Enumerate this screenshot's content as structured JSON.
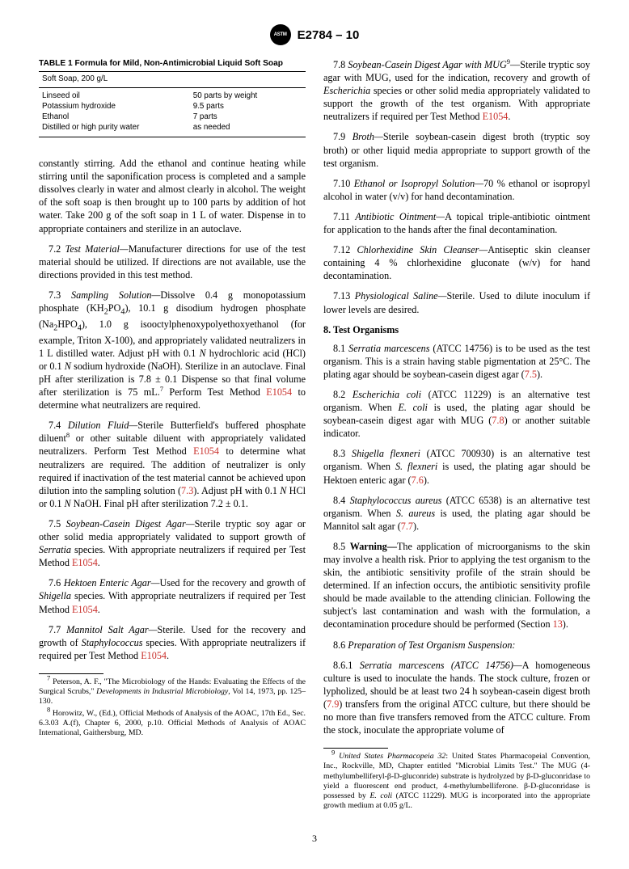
{
  "header": {
    "doc_id": "E2784 – 10"
  },
  "table": {
    "title": "TABLE 1 Formula for Mild, Non-Antimicrobial Liquid Soft Soap",
    "header": "Soft Soap, 200 g/L",
    "rows": [
      {
        "l": "Linseed oil",
        "r": "50 parts by weight"
      },
      {
        "l": "Potassium hydroxide",
        "r": "9.5 parts"
      },
      {
        "l": "Ethanol",
        "r": "7 parts"
      },
      {
        "l": "Distilled or high purity water",
        "r": "as needed"
      }
    ]
  },
  "left": {
    "p1": "constantly stirring. Add the ethanol and continue heating while stirring until the saponification process is completed and a sample dissolves clearly in water and almost clearly in alcohol. The weight of the soft soap is then brought up to 100 parts by addition of hot water. Take 200 g of the soft soap in 1 L of water. Dispense in to appropriate containers and sterilize in an autoclave.",
    "p72_lead": "7.2 ",
    "p72_title": "Test Material—",
    "p72": "Manufacturer directions for use of the test material should be utilized. If directions are not available, use the directions provided in this test method.",
    "p73_lead": "7.3 ",
    "p73_title": "Sampling Solution—",
    "p73a": "Dissolve 0.4 g monopotassium phosphate (KH",
    "p73a2": "PO",
    "p73a3": "), 10.1 g disodium hydrogen phosphate (Na",
    "p73a4": "HPO",
    "p73a5": "), 1.0 g isooctylphenoxypolyethoxyethanol (for example, Triton X-100), and appropriately validated neutralizers in 1 L distilled water. Adjust pH with 0.1 ",
    "p73a6": " hydrochloric acid (HCl) or 0.1 ",
    "p73a7": " sodium hydroxide (NaOH). Sterilize in an autoclave. Final pH after sterilization is 7.8 ± 0.1 Dispense so that final volume after sterilization is 75 mL.",
    "p73b": " Perform Test Method ",
    "p73ref": "E1054",
    "p73c": " to determine what neutralizers are required.",
    "p74_lead": "7.4 ",
    "p74_title": "Dilution Fluid—",
    "p74a": "Sterile Butterfield's buffered phosphate diluent",
    "p74b": " or other suitable diluent with appropriately validated neutralizers. Perform Test Method ",
    "p74ref": "E1054",
    "p74c": " to determine what neutralizers are required. The addition of neutralizer is only required if inactivation of the test material cannot be achieved upon dilution into the sampling solution (",
    "p74ref2": "7.3",
    "p74d": "). Adjust pH with 0.1 ",
    "p74e": " HCl or 0.1 ",
    "p74f": " NaOH. Final pH after sterilization 7.2 ± 0.1.",
    "p75_lead": "7.5 ",
    "p75_title": "Soybean-Casein Digest Agar—",
    "p75a": "Sterile tryptic soy agar or other solid media appropriately validated to support growth of ",
    "p75b": "Serratia",
    "p75c": " species. With appropriate neutralizers if required per Test Method ",
    "p75ref": "E1054",
    "p75d": ".",
    "p76_lead": "7.6 ",
    "p76_title": "Hektoen Enteric Agar—",
    "p76a": "Used for the recovery and growth of ",
    "p76b": "Shigella",
    "p76c": " species. With appropriate neutralizers if required per Test Method ",
    "p76ref": "E1054",
    "p76d": ".",
    "p77_lead": "7.7 ",
    "p77_title": "Mannitol Salt Agar—",
    "p77a": "Sterile. Used for the recovery and growth of ",
    "p77b": "Staphylococcus",
    "p77c": " species. With appropriate neutralizers if required per Test Method ",
    "p77ref": "E1054",
    "p77d": "."
  },
  "right": {
    "p78_lead": "7.8 ",
    "p78_title": "Soybean-Casein Digest Agar with MUG",
    "p78a": "—Sterile tryptic soy agar with MUG, used for the indication, recovery and growth of ",
    "p78b": "Escherichia",
    "p78c": " species or other solid media appropriately validated to support the growth of the test organism. With appropriate neutralizers if required per Test Method ",
    "p78ref": "E1054",
    "p78d": ".",
    "p79_lead": "7.9 ",
    "p79_title": "Broth—",
    "p79a": "Sterile soybean-casein digest broth (tryptic soy broth) or other liquid media appropriate to support growth of the test organism.",
    "p710_lead": "7.10 ",
    "p710_title": "Ethanol or Isopropyl Solution—",
    "p710a": "70 % ethanol or isopropyl alcohol in water (v/v) for hand decontamination.",
    "p711_lead": "7.11 ",
    "p711_title": "Antibiotic Ointment—",
    "p711a": "A topical triple-antibiotic ointment for application to the hands after the final decontamination.",
    "p712_lead": "7.12 ",
    "p712_title": "Chlorhexidine Skin Cleanser—",
    "p712a": "Antiseptic skin cleanser containing 4 % chlorhexidine gluconate (w/v) for hand decontamination.",
    "p713_lead": "7.13 ",
    "p713_title": "Physiological Saline—",
    "p713a": "Sterile. Used to dilute inoculum if lower levels are desired.",
    "sec8": "8. Test Organisms",
    "p81_lead": "8.1 ",
    "p81a": "Serratia marcescens",
    "p81b": " (ATCC 14756) is to be used as the test organism. This is a strain having stable pigmentation at 25°C. The plating agar should be soybean-casein digest agar (",
    "p81ref": "7.5",
    "p81c": ").",
    "p82_lead": "8.2 ",
    "p82a": "Escherichia coli",
    "p82b": " (ATCC 11229) is an alternative test organism. When ",
    "p82c": "E. coli",
    "p82d": " is used, the plating agar should be soybean-casein digest agar with MUG (",
    "p82ref": "7.8",
    "p82e": ") or another suitable indicator.",
    "p83_lead": "8.3 ",
    "p83a": "Shigella flexneri",
    "p83b": " (ATCC 700930) is an alternative test organism. When ",
    "p83c": "S. flexneri",
    "p83d": " is used, the plating agar should be Hektoen enteric agar (",
    "p83ref": "7.6",
    "p83e": ").",
    "p84_lead": "8.4 ",
    "p84a": "Staphylococcus aureus",
    "p84b": " (ATCC 6538) is an alternative test organism. When ",
    "p84c": "S. aureus",
    "p84d": " is used, the plating agar should be Mannitol salt agar (",
    "p84ref": "7.7",
    "p84e": ").",
    "p85_lead": "8.5 ",
    "p85_title": "Warning—",
    "p85a": "The application of microorganisms to the skin may involve a health risk. Prior to applying the test organism to the skin, the antibiotic sensitivity profile of the strain should be determined. If an infection occurs, the antibiotic sensitivity profile should be made available to the attending clinician. Following the subject's last contamination and wash with the formulation, a decontamination procedure should be performed (Section ",
    "p85ref": "13",
    "p85b": ").",
    "p86_lead": "8.6 ",
    "p86_title": "Preparation of Test Organism Suspension:",
    "p861_lead": "8.6.1 ",
    "p861a": "Serratia marcescens (ATCC 14756)—",
    "p861b": "A homogeneous culture is used to inoculate the hands. The stock culture, frozen or lypholized, should be at least two 24 h soybean-casein digest broth (",
    "p861ref": "7.9",
    "p861c": ") transfers from the original ATCC culture, but there should be no more than five transfers removed from the ATCC culture. From the stock, inoculate the appropriate volume of"
  },
  "footnotes": {
    "left": [
      {
        "sup": "7",
        "a": " Peterson, A. F., \"The Microbiology of the Hands: Evaluating the Effects of the Surgical Scrubs,\" ",
        "i": "Developments in Industrial Microbiology",
        "b": ", Vol 14, 1973, pp. 125–130."
      },
      {
        "sup": "8",
        "a": " Horowitz, W., (Ed.), Official Methods of Analysis of the AOAC, 17th Ed., Sec. 6.3.03 A.(f), Chapter 6, 2000, p.10. Official Methods of Analysis of AOAC International, Gaithersburg, MD."
      }
    ],
    "right": [
      {
        "sup": "9",
        "a": " ",
        "i": "United States Pharmacopeia 32",
        "b": ": United States Pharmacopeial Convention, Inc., Rockville, MD, Chapter entitled \"Microbial Limits Test.\" The MUG (4-methylumbelliferyl-β-D-gluconride) substrate is hydrolyzed by β-D-gluconridase to yield a fluorescent end product, 4-methylumbelliferone. β-D-gluconridase is possessed by ",
        "i2": "E. coli",
        "c": " (ATCC 11229). MUG is incorporated into the appropriate growth medium at 0.05 g/L."
      }
    ]
  },
  "page_number": "3"
}
